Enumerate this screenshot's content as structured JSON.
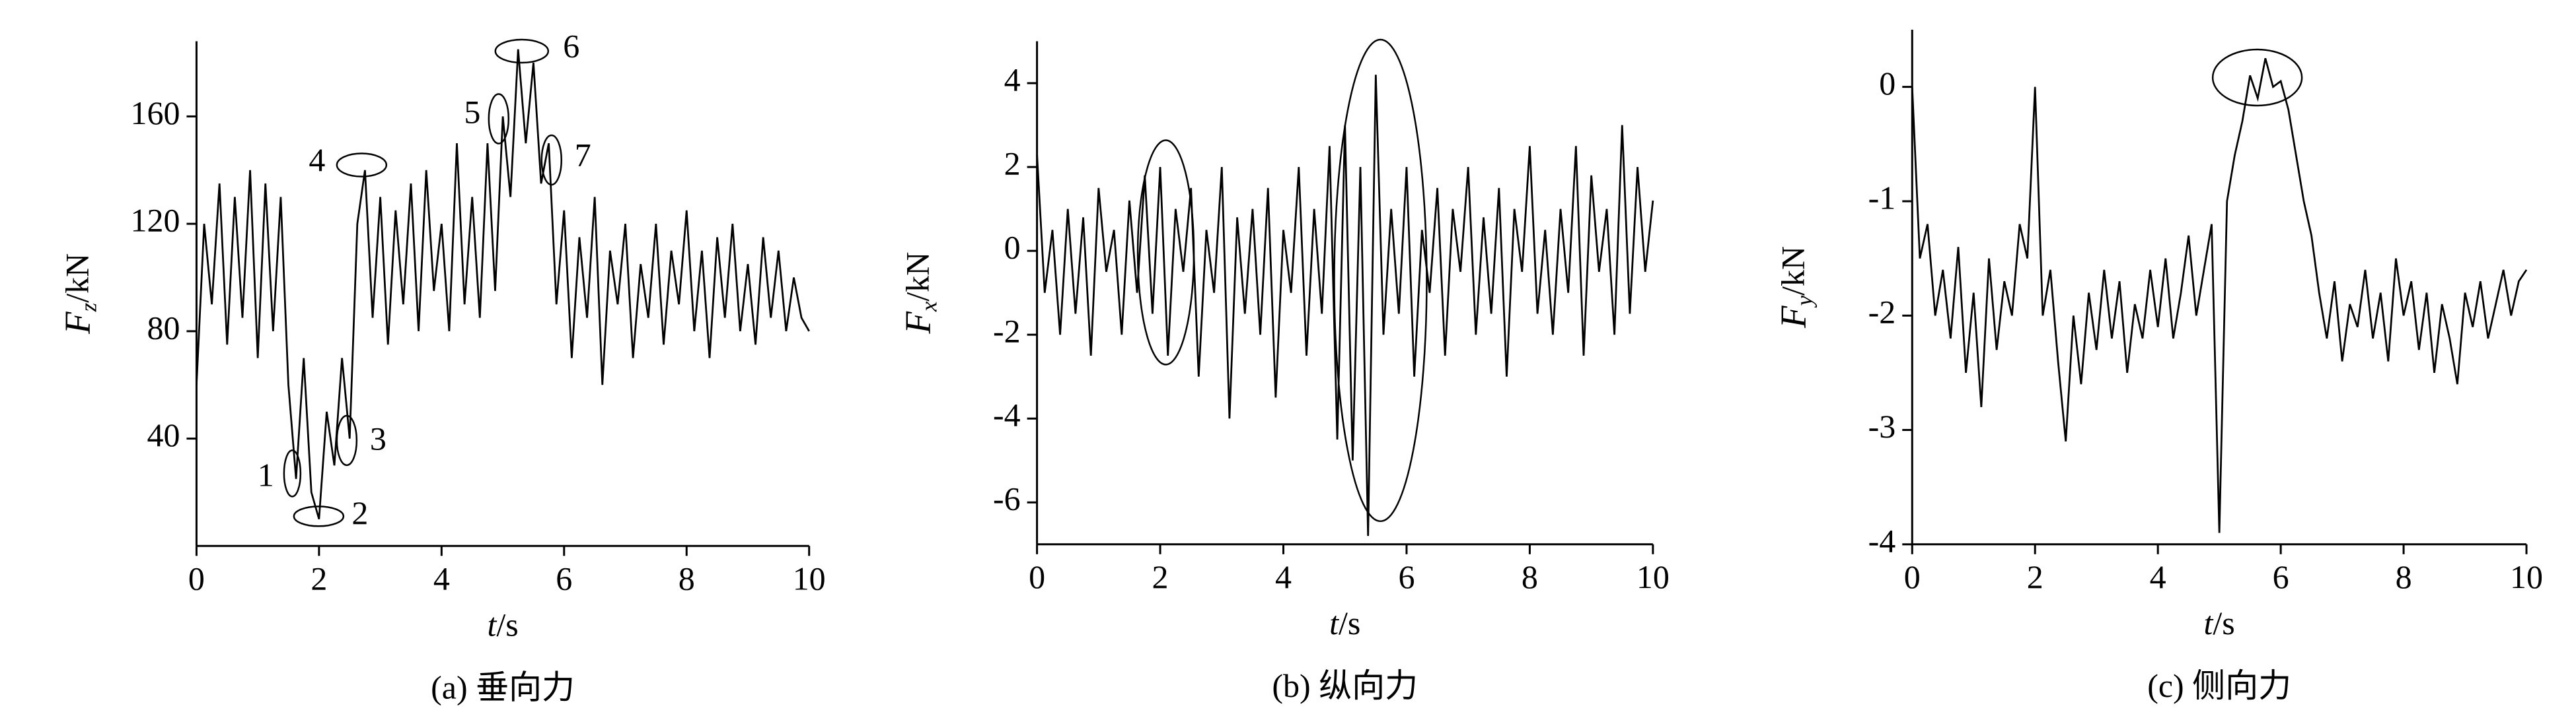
{
  "chart_data": [
    {
      "type": "line",
      "x": [
        0,
        0.125,
        0.25,
        0.375,
        0.5,
        0.625,
        0.75,
        0.875,
        1,
        1.125,
        1.25,
        1.375,
        1.5,
        1.625,
        1.75,
        1.875,
        2,
        2.125,
        2.25,
        2.375,
        2.5,
        2.625,
        2.75,
        2.875,
        3,
        3.125,
        3.25,
        3.375,
        3.5,
        3.625,
        3.75,
        3.875,
        4,
        4.125,
        4.25,
        4.375,
        4.5,
        4.625,
        4.75,
        4.875,
        5,
        5.125,
        5.25,
        5.375,
        5.5,
        5.625,
        5.75,
        5.875,
        6,
        6.125,
        6.25,
        6.375,
        6.5,
        6.625,
        6.75,
        6.875,
        7,
        7.125,
        7.25,
        7.375,
        7.5,
        7.625,
        7.75,
        7.875,
        8,
        8.125,
        8.25,
        8.375,
        8.5,
        8.625,
        8.75,
        8.875,
        9,
        9.125,
        9.25,
        9.375,
        9.5,
        9.625,
        9.75,
        9.875,
        10
      ],
      "series": [
        {
          "color": "#000000",
          "values": [
            60,
            120,
            90,
            135,
            75,
            130,
            85,
            140,
            70,
            135,
            80,
            130,
            60,
            25,
            70,
            20,
            10,
            50,
            30,
            70,
            40,
            120,
            140,
            85,
            130,
            75,
            125,
            90,
            135,
            80,
            140,
            95,
            120,
            80,
            150,
            90,
            130,
            85,
            150,
            95,
            160,
            130,
            185,
            150,
            180,
            135,
            150,
            90,
            125,
            70,
            115,
            85,
            130,
            60,
            110,
            90,
            120,
            70,
            105,
            85,
            120,
            75,
            110,
            90,
            125,
            80,
            110,
            70,
            115,
            85,
            120,
            80,
            105,
            75,
            115,
            85,
            110,
            80,
            100,
            85,
            80
          ]
        }
      ],
      "xlim": [
        0,
        10
      ],
      "xticks": [
        0,
        2,
        4,
        6,
        8,
        10
      ],
      "ylim": [
        0,
        188
      ],
      "yticks": [
        40,
        80,
        120,
        160
      ],
      "x_label": {
        "symbol": "t",
        "unit": "/s"
      },
      "y_label": {
        "symbol": "F",
        "subscript": "z",
        "unit": "/kN"
      },
      "caption": "(a) 垂向力",
      "annotations": [
        "1",
        "2",
        "3",
        "4",
        "5",
        "6",
        "7"
      ]
    },
    {
      "type": "line",
      "x": [
        0,
        0.125,
        0.25,
        0.375,
        0.5,
        0.625,
        0.75,
        0.875,
        1,
        1.125,
        1.25,
        1.375,
        1.5,
        1.625,
        1.75,
        1.875,
        2,
        2.125,
        2.25,
        2.375,
        2.5,
        2.625,
        2.75,
        2.875,
        3,
        3.125,
        3.25,
        3.375,
        3.5,
        3.625,
        3.75,
        3.875,
        4,
        4.125,
        4.25,
        4.375,
        4.5,
        4.625,
        4.75,
        4.875,
        5,
        5.125,
        5.25,
        5.375,
        5.5,
        5.625,
        5.75,
        5.875,
        6,
        6.125,
        6.25,
        6.375,
        6.5,
        6.625,
        6.75,
        6.875,
        7,
        7.125,
        7.25,
        7.375,
        7.5,
        7.625,
        7.75,
        7.875,
        8,
        8.125,
        8.25,
        8.375,
        8.5,
        8.625,
        8.75,
        8.875,
        9,
        9.125,
        9.25,
        9.375,
        9.5,
        9.625,
        9.75,
        9.875,
        10
      ],
      "series": [
        {
          "color": "#000000",
          "values": [
            2.3,
            -1,
            0.5,
            -2,
            1,
            -1.5,
            0.8,
            -2.5,
            1.5,
            -0.5,
            0.5,
            -2,
            1.2,
            -1,
            1.8,
            -1.5,
            2,
            -2.5,
            1,
            -0.5,
            1.5,
            -3,
            0.5,
            -1,
            2,
            -4,
            0.8,
            -1.5,
            1,
            -2,
            1.5,
            -3.5,
            0.5,
            -1,
            2,
            -2.5,
            1,
            -1.5,
            2.5,
            -4.5,
            3,
            -5,
            2,
            -6.8,
            4.2,
            -2,
            1,
            -1.5,
            2,
            -3,
            0.5,
            -1,
            1.5,
            -2.5,
            1,
            -0.5,
            2,
            -2,
            0.8,
            -1.5,
            1.5,
            -3,
            1,
            -0.5,
            2.5,
            -1.5,
            0.5,
            -2,
            1,
            -1,
            2.5,
            -2.5,
            1.8,
            -0.5,
            1,
            -2,
            3,
            -1.5,
            2,
            -0.5,
            1.2
          ]
        }
      ],
      "xlim": [
        0,
        10
      ],
      "xticks": [
        0,
        2,
        4,
        6,
        8,
        10
      ],
      "ylim": [
        -7,
        5
      ],
      "yticks": [
        -6,
        -4,
        -2,
        0,
        2,
        4
      ],
      "x_label": {
        "symbol": "t",
        "unit": "/s"
      },
      "y_label": {
        "symbol": "F",
        "subscript": "x",
        "unit": "/kN"
      },
      "caption": "(b) 纵向力"
    },
    {
      "type": "line",
      "x": [
        0,
        0.125,
        0.25,
        0.375,
        0.5,
        0.625,
        0.75,
        0.875,
        1,
        1.125,
        1.25,
        1.375,
        1.5,
        1.625,
        1.75,
        1.875,
        2,
        2.125,
        2.25,
        2.375,
        2.5,
        2.625,
        2.75,
        2.875,
        3,
        3.125,
        3.25,
        3.375,
        3.5,
        3.625,
        3.75,
        3.875,
        4,
        4.125,
        4.25,
        4.375,
        4.5,
        4.625,
        4.75,
        4.875,
        5,
        5.125,
        5.25,
        5.375,
        5.5,
        5.625,
        5.75,
        5.875,
        6,
        6.125,
        6.25,
        6.375,
        6.5,
        6.625,
        6.75,
        6.875,
        7,
        7.125,
        7.25,
        7.375,
        7.5,
        7.625,
        7.75,
        7.875,
        8,
        8.125,
        8.25,
        8.375,
        8.5,
        8.625,
        8.75,
        8.875,
        9,
        9.125,
        9.25,
        9.375,
        9.5,
        9.625,
        9.75,
        9.875,
        10
      ],
      "series": [
        {
          "color": "#000000",
          "values": [
            0,
            -1.5,
            -1.2,
            -2,
            -1.6,
            -2.2,
            -1.4,
            -2.5,
            -1.8,
            -2.8,
            -1.5,
            -2.3,
            -1.7,
            -2,
            -1.2,
            -1.5,
            0,
            -2,
            -1.6,
            -2.4,
            -3.1,
            -2,
            -2.6,
            -1.8,
            -2.3,
            -1.6,
            -2.2,
            -1.7,
            -2.5,
            -1.9,
            -2.2,
            -1.6,
            -2.1,
            -1.5,
            -2.2,
            -1.8,
            -1.3,
            -2,
            -1.6,
            -1.2,
            -3.9,
            -1,
            -0.6,
            -0.3,
            0.1,
            -0.1,
            0.25,
            0,
            0.05,
            -0.2,
            -0.6,
            -1,
            -1.3,
            -1.8,
            -2.2,
            -1.7,
            -2.4,
            -1.9,
            -2.1,
            -1.6,
            -2.2,
            -1.8,
            -2.4,
            -1.5,
            -2,
            -1.7,
            -2.3,
            -1.8,
            -2.5,
            -1.9,
            -2.2,
            -2.6,
            -1.8,
            -2.1,
            -1.7,
            -2.2,
            -1.9,
            -1.6,
            -2,
            -1.7,
            -1.6
          ]
        }
      ],
      "xlim": [
        0,
        10
      ],
      "xticks": [
        0,
        2,
        4,
        6,
        8,
        10
      ],
      "ylim": [
        -4,
        0.5
      ],
      "yticks": [
        -4,
        -3,
        -2,
        -1,
        0
      ],
      "x_label": {
        "symbol": "t",
        "unit": "/s"
      },
      "y_label": {
        "symbol": "F",
        "subscript": "y",
        "unit": "/kN"
      },
      "caption": "(c) 侧向力"
    }
  ]
}
